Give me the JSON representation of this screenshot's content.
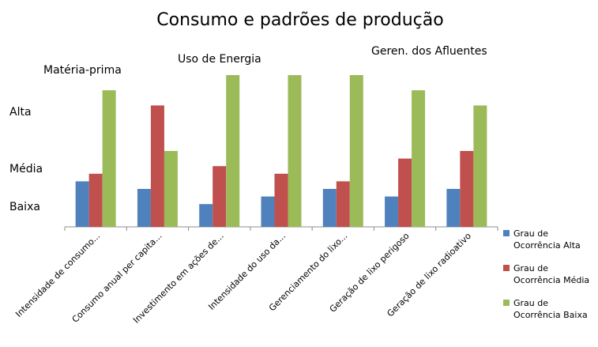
{
  "chart_data": {
    "type": "bar",
    "title": "Consumo e padrões de produção",
    "group_labels": [
      "Matéria-prima",
      "Uso de Energia",
      "Geren. dos Afluentes"
    ],
    "level_labels": [
      "Alta",
      "Média",
      "Baixa"
    ],
    "categories": [
      "Intensidade de consumo...",
      "Consumo anual per capita...",
      "Investimento em ações de...",
      "Intensidade do uso da...",
      "Gerenciamento do lixo...",
      "Geração de lixo perigoso",
      "Geração de lixo radioativo"
    ],
    "series": [
      {
        "name": "Grau de Ocorrência Alta",
        "color": "#4F81BD",
        "values": [
          3.0,
          2.5,
          1.5,
          2.0,
          2.5,
          2.0,
          2.5
        ]
      },
      {
        "name": "Grau de Ocorrência Média",
        "color": "#C0504D",
        "values": [
          3.5,
          8.0,
          4.0,
          3.5,
          3.0,
          4.5,
          5.0
        ]
      },
      {
        "name": "Grau de Ocorrência Baixa",
        "color": "#9BBB59",
        "values": [
          9.0,
          5.0,
          10.0,
          10.0,
          10.0,
          9.0,
          8.0
        ]
      }
    ],
    "ylim": [
      0,
      10
    ],
    "grid": false,
    "legend": "right"
  }
}
